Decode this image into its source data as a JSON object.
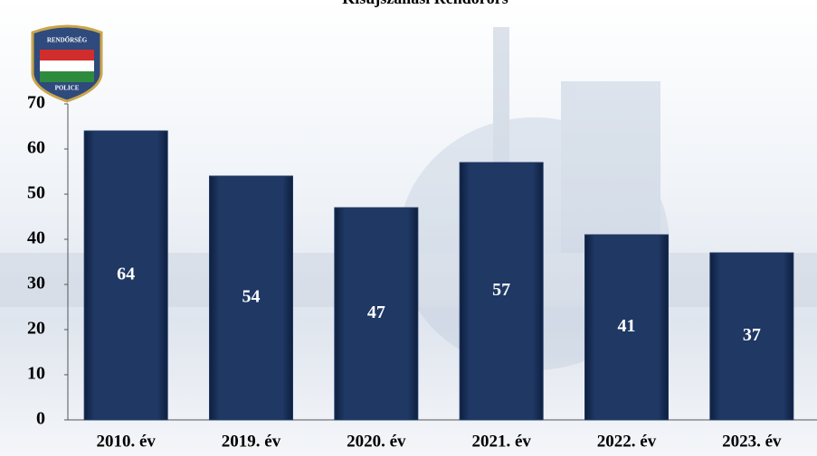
{
  "chart_data": {
    "type": "bar",
    "title": "Kisújszállási Rendőrőrs",
    "logo": {
      "top": "RENDŐRSÉG",
      "bottom": "POLICE"
    },
    "categories": [
      "2010. év",
      "2019. év",
      "2020. év",
      "2021. év",
      "2022. év",
      "2023. év"
    ],
    "values": [
      64,
      54,
      47,
      57,
      41,
      37
    ],
    "color": "#1f3864",
    "ylim": [
      0,
      70
    ],
    "yticks": [
      0,
      10,
      20,
      30,
      40,
      50,
      60,
      70
    ],
    "grid": false
  }
}
